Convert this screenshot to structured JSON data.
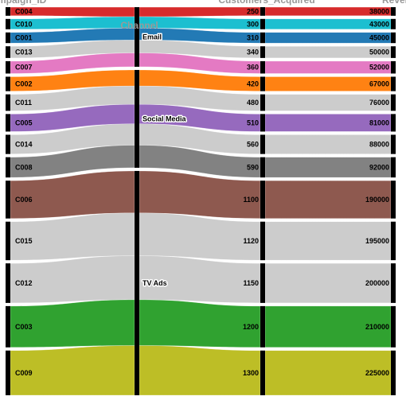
{
  "chart_data": {
    "type": "parallel_categories",
    "dimensions": [
      {
        "key": "campaign",
        "title": "Campaign_ID"
      },
      {
        "key": "channel",
        "title": "Channel"
      },
      {
        "key": "customers",
        "title": "Customers_Acquired"
      },
      {
        "key": "revenue",
        "title": "Revenue"
      }
    ],
    "channels": [
      "Email",
      "Social Media",
      "TV Ads"
    ],
    "records": [
      {
        "campaign": "C004",
        "channel": "Email",
        "customers": 250,
        "revenue": 38000,
        "color": "#d62728"
      },
      {
        "campaign": "C010",
        "channel": "Email",
        "customers": 300,
        "revenue": 43000,
        "color": "#17becf"
      },
      {
        "campaign": "C001",
        "channel": "Email",
        "customers": 310,
        "revenue": 45000,
        "color": "#1f77b4"
      },
      {
        "campaign": "C013",
        "channel": "Email",
        "customers": 340,
        "revenue": 50000,
        "color": "#cccccc"
      },
      {
        "campaign": "C007",
        "channel": "Email",
        "customers": 360,
        "revenue": 52000,
        "color": "#e377c2"
      },
      {
        "campaign": "C002",
        "channel": "Social Media",
        "customers": 420,
        "revenue": 67000,
        "color": "#ff7f0e"
      },
      {
        "campaign": "C011",
        "channel": "Social Media",
        "customers": 480,
        "revenue": 76000,
        "color": "#cccccc"
      },
      {
        "campaign": "C005",
        "channel": "Social Media",
        "customers": 510,
        "revenue": 81000,
        "color": "#9467bd"
      },
      {
        "campaign": "C014",
        "channel": "Social Media",
        "customers": 560,
        "revenue": 88000,
        "color": "#cccccc"
      },
      {
        "campaign": "C008",
        "channel": "Social Media",
        "customers": 590,
        "revenue": 92000,
        "color": "#7f7f7f"
      },
      {
        "campaign": "C006",
        "channel": "TV Ads",
        "customers": 1100,
        "revenue": 190000,
        "color": "#8c564b"
      },
      {
        "campaign": "C015",
        "channel": "TV Ads",
        "customers": 1120,
        "revenue": 195000,
        "color": "#cccccc"
      },
      {
        "campaign": "C012",
        "channel": "TV Ads",
        "customers": 1150,
        "revenue": 200000,
        "color": "#cccccc"
      },
      {
        "campaign": "C003",
        "channel": "TV Ads",
        "customers": 1200,
        "revenue": 210000,
        "color": "#2ca02c"
      },
      {
        "campaign": "C009",
        "channel": "TV Ads",
        "customers": 1300,
        "revenue": 225000,
        "color": "#bcbd22"
      }
    ]
  }
}
